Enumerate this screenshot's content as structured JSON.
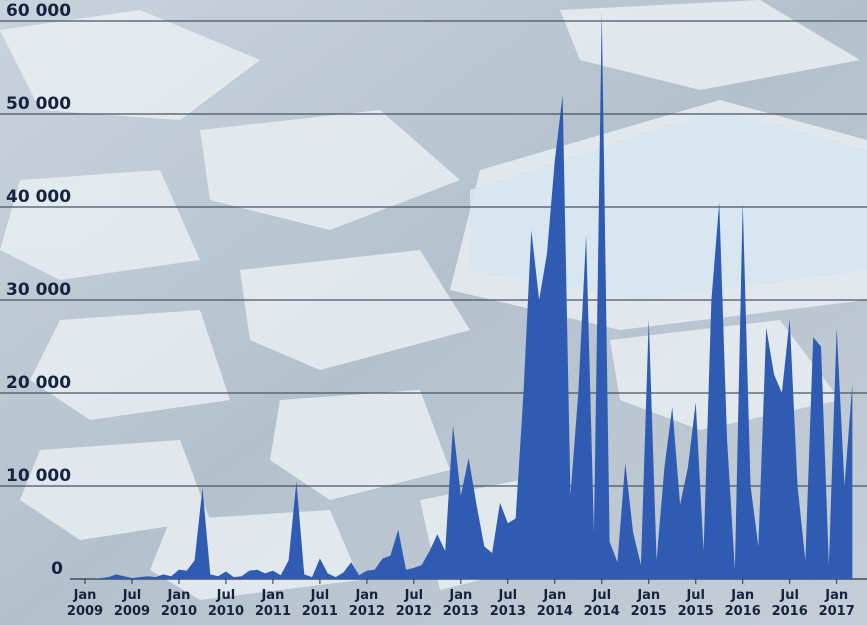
{
  "chart_data": {
    "type": "area",
    "color": "#2f5cb2",
    "grid": true,
    "x": [
      "2009-01",
      "2009-02",
      "2009-03",
      "2009-04",
      "2009-05",
      "2009-06",
      "2009-07",
      "2009-08",
      "2009-09",
      "2009-10",
      "2009-11",
      "2009-12",
      "2010-01",
      "2010-02",
      "2010-03",
      "2010-04",
      "2010-05",
      "2010-06",
      "2010-07",
      "2010-08",
      "2010-09",
      "2010-10",
      "2010-11",
      "2010-12",
      "2011-01",
      "2011-02",
      "2011-03",
      "2011-04",
      "2011-05",
      "2011-06",
      "2011-07",
      "2011-08",
      "2011-09",
      "2011-10",
      "2011-11",
      "2011-12",
      "2012-01",
      "2012-02",
      "2012-03",
      "2012-04",
      "2012-05",
      "2012-06",
      "2012-07",
      "2012-08",
      "2012-09",
      "2012-10",
      "2012-11",
      "2012-12",
      "2013-01",
      "2013-02",
      "2013-03",
      "2013-04",
      "2013-05",
      "2013-06",
      "2013-07",
      "2013-08",
      "2013-09",
      "2013-10",
      "2013-11",
      "2013-12",
      "2014-01",
      "2014-02",
      "2014-03",
      "2014-04",
      "2014-05",
      "2014-06",
      "2014-07",
      "2014-08",
      "2014-09",
      "2014-10",
      "2014-11",
      "2014-12",
      "2015-01",
      "2015-02",
      "2015-03",
      "2015-04",
      "2015-05",
      "2015-06",
      "2015-07",
      "2015-08",
      "2015-09",
      "2015-10",
      "2015-11",
      "2015-12",
      "2016-01",
      "2016-02",
      "2016-03",
      "2016-04",
      "2016-05",
      "2016-06",
      "2016-07",
      "2016-08",
      "2016-09",
      "2016-10",
      "2016-11",
      "2016-12",
      "2017-01",
      "2017-02",
      "2017-03"
    ],
    "values": [
      0,
      0,
      100,
      200,
      500,
      300,
      100,
      200,
      300,
      200,
      500,
      300,
      1000,
      900,
      2000,
      9800,
      500,
      300,
      800,
      200,
      300,
      900,
      1000,
      600,
      900,
      400,
      2000,
      10500,
      500,
      200,
      2200,
      600,
      200,
      700,
      1800,
      400,
      900,
      1000,
      2200,
      2500,
      5300,
      1000,
      1200,
      1500,
      3000,
      4800,
      3000,
      16500,
      9000,
      13000,
      8000,
      3500,
      2800,
      8200,
      6000,
      6500,
      20000,
      37500,
      30000,
      35000,
      45000,
      52000,
      9000,
      20000,
      37000,
      5000,
      61000,
      4000,
      1800,
      12500,
      5000,
      1500,
      28000,
      2000,
      12000,
      18500,
      8000,
      12000,
      19000,
      3000,
      30000,
      40500,
      15000,
      1000,
      40500,
      10000,
      3500,
      27000,
      22000,
      20000,
      28000,
      10000,
      2000,
      26000,
      25000,
      1500,
      27000,
      10000,
      21000
    ],
    "ylim": [
      0,
      61000
    ],
    "yticks": [
      0,
      {
        "value": 10000,
        "label": "10 000"
      },
      {
        "value": 20000,
        "label": "20 000"
      },
      {
        "value": 30000,
        "label": "30 000"
      },
      {
        "value": 40000,
        "label": "40 000"
      },
      {
        "value": 50000,
        "label": "50 000"
      },
      {
        "value": 60000,
        "label": "60 000"
      }
    ],
    "xticks": [
      {
        "value": "2009-01",
        "label": [
          "Jan",
          "2009"
        ]
      },
      {
        "value": "2009-07",
        "label": [
          "Jul",
          "2009"
        ]
      },
      {
        "value": "2010-01",
        "label": [
          "Jan",
          "2010"
        ]
      },
      {
        "value": "2010-07",
        "label": [
          "Jul",
          "2010"
        ]
      },
      {
        "value": "2011-01",
        "label": [
          "Jan",
          "2011"
        ]
      },
      {
        "value": "2011-07",
        "label": [
          "Jul",
          "2011"
        ]
      },
      {
        "value": "2012-01",
        "label": [
          "Jan",
          "2012"
        ]
      },
      {
        "value": "2012-07",
        "label": [
          "Jul",
          "2012"
        ]
      },
      {
        "value": "2013-01",
        "label": [
          "Jan",
          "2013"
        ]
      },
      {
        "value": "2013-07",
        "label": [
          "Jul",
          "2013"
        ]
      },
      {
        "value": "2014-01",
        "label": [
          "Jan",
          "2014"
        ]
      },
      {
        "value": "2014-07",
        "label": [
          "Jul",
          "2014"
        ]
      },
      {
        "value": "2015-01",
        "label": [
          "Jan",
          "2015"
        ]
      },
      {
        "value": "2015-07",
        "label": [
          "Jul",
          "2015"
        ]
      },
      {
        "value": "2016-01",
        "label": [
          "Jan",
          "2016"
        ]
      },
      {
        "value": "2016-07",
        "label": [
          "Jul",
          "2016"
        ]
      },
      {
        "value": "2017-01",
        "label": [
          "Jan",
          "2017"
        ]
      }
    ]
  }
}
